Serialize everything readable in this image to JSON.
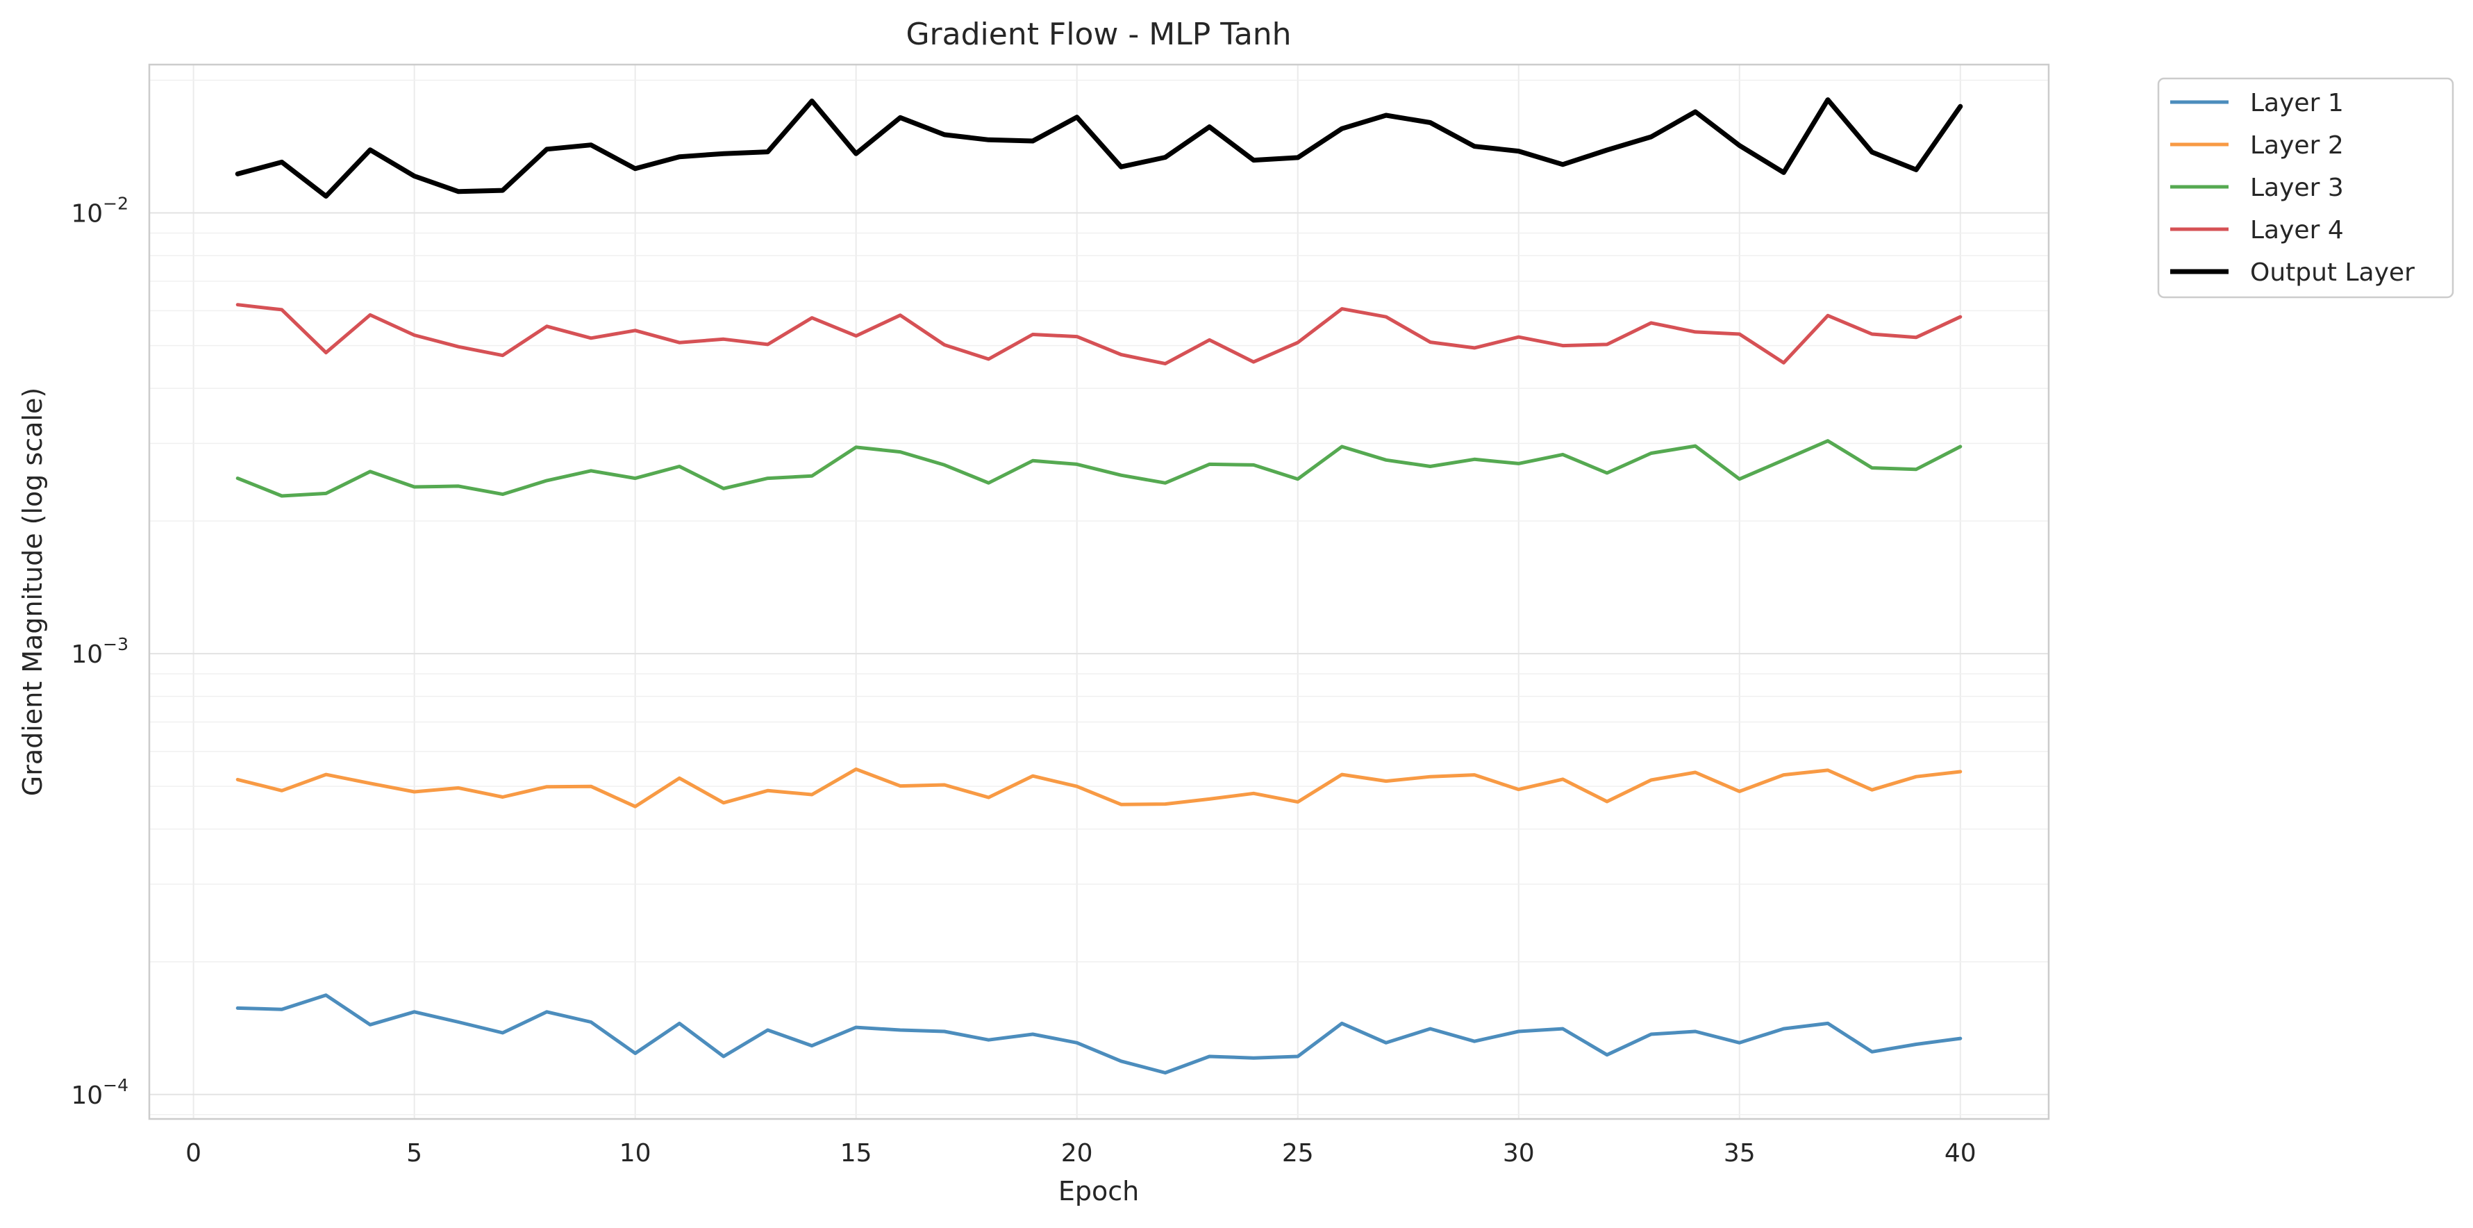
{
  "chart_data": {
    "type": "line",
    "title": "Gradient Flow - MLP Tanh",
    "xlabel": "Epoch",
    "ylabel": "Gradient Magnitude (log scale)",
    "yscale": "log",
    "xlim": [
      -1,
      42
    ],
    "ylim": [
      8.8e-05,
      0.0217
    ],
    "grid": true,
    "legend_position": "outside-top-right",
    "x_ticks": [
      0,
      5,
      10,
      15,
      20,
      25,
      30,
      35,
      40
    ],
    "y_ticks": [
      {
        "value": 0.0001,
        "base": "10",
        "exp": "−4"
      },
      {
        "value": 0.001,
        "base": "10",
        "exp": "−3"
      },
      {
        "value": 0.01,
        "base": "10",
        "exp": "−2"
      }
    ],
    "x": [
      1,
      2,
      3,
      4,
      5,
      6,
      7,
      8,
      9,
      10,
      11,
      12,
      13,
      14,
      15,
      16,
      17,
      18,
      19,
      20,
      21,
      22,
      23,
      24,
      25,
      26,
      27,
      28,
      29,
      30,
      31,
      32,
      33,
      34,
      35,
      36,
      37,
      38,
      39,
      40
    ],
    "series": [
      {
        "name": "Layer 1",
        "color": "#4c8dbd",
        "width": 5,
        "values": [
          0.000157,
          0.000156,
          0.000168,
          0.000144,
          0.000154,
          0.000146,
          0.000138,
          0.000154,
          0.000146,
          0.000124,
          0.000145,
          0.000122,
          0.00014,
          0.000129,
          0.000142,
          0.00014,
          0.000139,
          0.000133,
          0.000137,
          0.000131,
          0.000119,
          0.000112,
          0.000122,
          0.000121,
          0.000122,
          0.000145,
          0.000131,
          0.000141,
          0.000132,
          0.000139,
          0.000141,
          0.000123,
          0.000137,
          0.000139,
          0.000131,
          0.000141,
          0.000145,
          0.000125,
          0.00013,
          0.000134
        ]
      },
      {
        "name": "Layer 2",
        "color": "#f89a44",
        "width": 5,
        "values": [
          0.000518,
          0.000489,
          0.000532,
          0.000508,
          0.000486,
          0.000496,
          0.000473,
          0.000499,
          0.0005,
          0.00045,
          0.000522,
          0.000459,
          0.000489,
          0.000479,
          0.000547,
          0.000501,
          0.000504,
          0.000472,
          0.000528,
          0.0005,
          0.000455,
          0.000456,
          0.000468,
          0.000482,
          0.000461,
          0.000532,
          0.000514,
          0.000526,
          0.000531,
          0.000492,
          0.000519,
          0.000462,
          0.000517,
          0.000538,
          0.000487,
          0.000531,
          0.000544,
          0.000491,
          0.000526,
          0.00054
        ]
      },
      {
        "name": "Layer 3",
        "color": "#55a951",
        "width": 5,
        "values": [
          0.0025,
          0.00228,
          0.00231,
          0.00259,
          0.00239,
          0.0024,
          0.0023,
          0.00247,
          0.0026,
          0.0025,
          0.00266,
          0.00237,
          0.0025,
          0.00253,
          0.00294,
          0.00287,
          0.00268,
          0.00244,
          0.00274,
          0.00269,
          0.00254,
          0.00244,
          0.00269,
          0.00268,
          0.00249,
          0.00295,
          0.00275,
          0.00266,
          0.00276,
          0.0027,
          0.00283,
          0.00257,
          0.00285,
          0.00296,
          0.00249,
          0.00275,
          0.00304,
          0.00264,
          0.00262,
          0.00295
        ]
      },
      {
        "name": "Layer 4",
        "color": "#d65155",
        "width": 5,
        "values": [
          0.00619,
          0.00603,
          0.00482,
          0.00587,
          0.00528,
          0.00497,
          0.00475,
          0.00553,
          0.0052,
          0.00541,
          0.00508,
          0.00517,
          0.00503,
          0.00578,
          0.00526,
          0.00586,
          0.00502,
          0.00466,
          0.0053,
          0.00524,
          0.00477,
          0.00455,
          0.00515,
          0.00459,
          0.00508,
          0.00606,
          0.00581,
          0.00509,
          0.00494,
          0.00523,
          0.005,
          0.00503,
          0.00563,
          0.00537,
          0.00531,
          0.00457,
          0.00585,
          0.00531,
          0.00522,
          0.00581
        ]
      },
      {
        "name": "Output Layer",
        "color": "#000000",
        "width": 7,
        "values": [
          0.01226,
          0.01304,
          0.01091,
          0.0139,
          0.01212,
          0.01118,
          0.01125,
          0.01395,
          0.01426,
          0.0126,
          0.01341,
          0.01363,
          0.01376,
          0.01794,
          0.01363,
          0.01645,
          0.01505,
          0.01465,
          0.01456,
          0.01649,
          0.01272,
          0.01337,
          0.01568,
          0.01317,
          0.01335,
          0.01553,
          0.01665,
          0.01603,
          0.01416,
          0.01381,
          0.01288,
          0.01389,
          0.01488,
          0.01696,
          0.01422,
          0.01235,
          0.01806,
          0.01374,
          0.01253,
          0.01744
        ]
      }
    ]
  }
}
